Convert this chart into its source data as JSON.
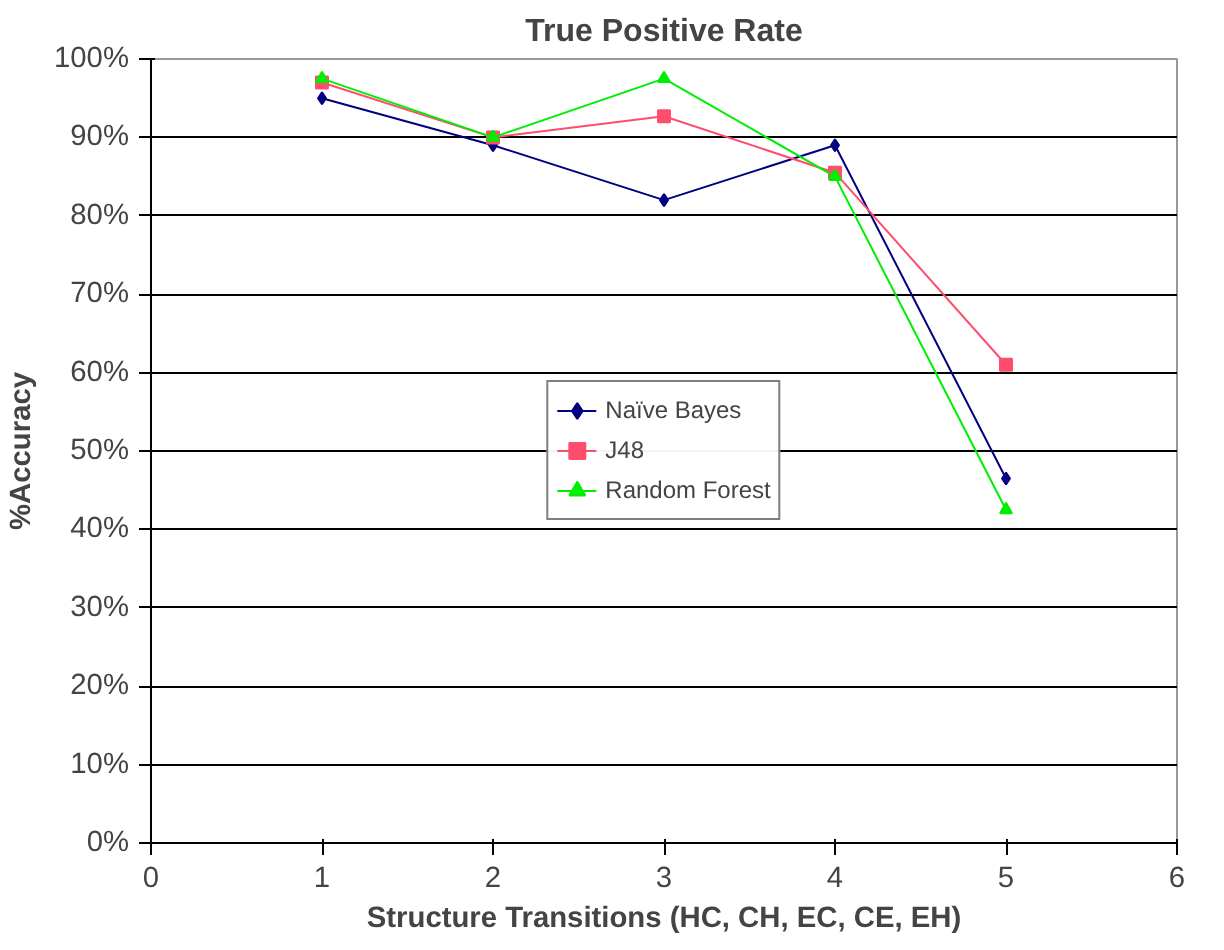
{
  "chart_data": {
    "type": "line",
    "title": "True Positive Rate",
    "xlabel": "Structure Transitions (HC, CH, EC, CE, EH)",
    "ylabel": "%Accuracy",
    "x": [
      1,
      2,
      3,
      4,
      5
    ],
    "series": [
      {
        "name": "Naïve Bayes",
        "color": "#000080",
        "marker": "diamond",
        "values": [
          95,
          89,
          82,
          89,
          46.5
        ]
      },
      {
        "name": "J48",
        "color": "#ff4d6d",
        "marker": "square",
        "values": [
          97,
          90,
          92.7,
          85.5,
          61
        ]
      },
      {
        "name": "Random Forest",
        "color": "#00ee00",
        "marker": "triangle",
        "values": [
          97.5,
          90,
          97.5,
          85,
          42.5
        ]
      }
    ],
    "xlim": [
      0,
      6
    ],
    "xticks": [
      0,
      1,
      2,
      3,
      4,
      5,
      6
    ],
    "ylim": [
      0,
      100
    ],
    "yticks": [
      {
        "value": 0,
        "label": "0%"
      },
      {
        "value": 10,
        "label": "10%"
      },
      {
        "value": 20,
        "label": "20%"
      },
      {
        "value": 30,
        "label": "30%"
      },
      {
        "value": 40,
        "label": "40%"
      },
      {
        "value": 50,
        "label": "50%"
      },
      {
        "value": 60,
        "label": "60%"
      },
      {
        "value": 70,
        "label": "70%"
      },
      {
        "value": 80,
        "label": "80%"
      },
      {
        "value": 90,
        "label": "90%"
      },
      {
        "value": 100,
        "label": "100%"
      }
    ],
    "grid": "y",
    "legend": "center",
    "line_style": "solid"
  }
}
